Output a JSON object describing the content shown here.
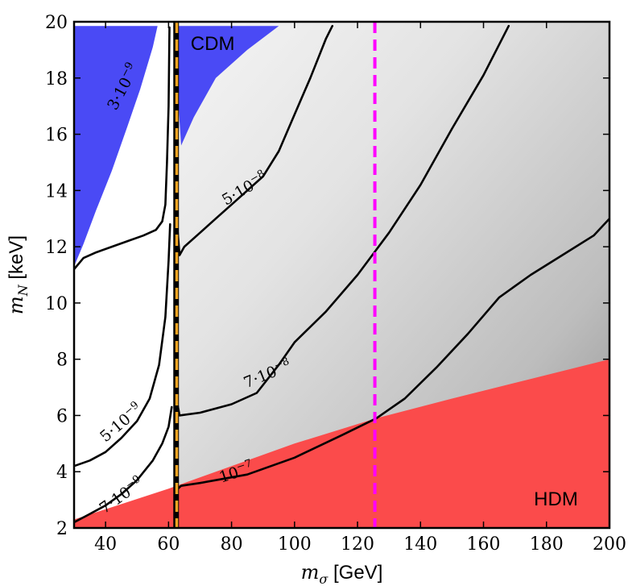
{
  "chart_data": {
    "type": "contour",
    "xlabel": "m_σ [GeV]",
    "ylabel": "m_N [keV]",
    "xlim": [
      30,
      200
    ],
    "ylim": [
      2,
      20
    ],
    "xticks": [
      40,
      60,
      80,
      100,
      120,
      140,
      160,
      180,
      200
    ],
    "yticks": [
      2,
      4,
      6,
      8,
      10,
      12,
      14,
      16,
      18,
      20
    ],
    "grid": false,
    "background": {
      "description": "grey gradient increasing with m_σ and decreasing m_N, white left of resonance",
      "colors": [
        "#ffffff",
        "#ebebeb",
        "#9a9a9a"
      ]
    },
    "regions": [
      {
        "name": "CDM",
        "label": "CDM",
        "color": "#4a4af5",
        "boundary": [
          [
            30,
            11.3
          ],
          [
            33,
            12.1
          ],
          [
            37,
            13.3
          ],
          [
            42,
            14.7
          ],
          [
            47,
            16.3
          ],
          [
            51,
            17.6
          ],
          [
            55,
            19.1
          ],
          [
            56.5,
            19.85
          ],
          [
            61.5,
            19.85
          ],
          [
            64,
            15.6
          ],
          [
            68,
            16.6
          ],
          [
            75,
            18.0
          ],
          [
            85,
            19.0
          ],
          [
            95,
            19.85
          ],
          [
            30,
            19.85
          ]
        ]
      },
      {
        "name": "HDM",
        "label": "HDM",
        "color": "#fb4b4b",
        "boundary": [
          [
            30,
            2.3
          ],
          [
            60,
            3.4
          ],
          [
            80,
            4.2
          ],
          [
            100,
            5.0
          ],
          [
            126,
            5.9
          ],
          [
            150,
            6.6
          ],
          [
            175,
            7.3
          ],
          [
            200,
            8.0
          ],
          [
            200,
            2.0
          ],
          [
            30,
            2.0
          ]
        ]
      }
    ],
    "contours": [
      {
        "label": "3·10^-9",
        "label_at": [
          47,
          17.6
        ],
        "points": [
          [
            30,
            11.2
          ],
          [
            33,
            11.6
          ],
          [
            37,
            11.8
          ],
          [
            42,
            12.0
          ],
          [
            47,
            12.2
          ],
          [
            52,
            12.4
          ],
          [
            56,
            12.6
          ],
          [
            58,
            12.9
          ],
          [
            59,
            13.5
          ],
          [
            59.5,
            15
          ],
          [
            60,
            17
          ],
          [
            60.3,
            19.8
          ]
        ]
      },
      {
        "label": "5·10^-9",
        "label_at": [
          46,
          5.6
        ],
        "points": [
          [
            30,
            4.2
          ],
          [
            35,
            4.4
          ],
          [
            40,
            4.7
          ],
          [
            45,
            5.2
          ],
          [
            50,
            5.8
          ],
          [
            54,
            6.6
          ],
          [
            57,
            7.8
          ],
          [
            59,
            9.5
          ],
          [
            60,
            11.5
          ],
          [
            60.5,
            12.8
          ]
        ]
      },
      {
        "label": "7·10^-9",
        "label_at": [
          46,
          3.0
        ],
        "points": [
          [
            30,
            2.2
          ],
          [
            35,
            2.5
          ],
          [
            40,
            2.8
          ],
          [
            45,
            3.2
          ],
          [
            50,
            3.7
          ],
          [
            55,
            4.4
          ],
          [
            58,
            5.0
          ],
          [
            60,
            5.6
          ],
          [
            61,
            6.3
          ]
        ]
      },
      {
        "label": "5·10^-8",
        "label_at": [
          85,
          13.9
        ],
        "points": [
          [
            62.5,
            13.1
          ],
          [
            63,
            12.4
          ],
          [
            63.5,
            11.7
          ],
          [
            65,
            12.0
          ],
          [
            70,
            12.5
          ],
          [
            75,
            13.0
          ],
          [
            80,
            13.5
          ],
          [
            90,
            14.5
          ],
          [
            95,
            15.4
          ],
          [
            100,
            16.7
          ],
          [
            105,
            18.0
          ],
          [
            110,
            19.4
          ],
          [
            112,
            19.85
          ]
        ]
      },
      {
        "label": "7·10^-8",
        "label_at": [
          92,
          7.3
        ],
        "points": [
          [
            62.5,
            6.7
          ],
          [
            63,
            6.3
          ],
          [
            63.5,
            6.0
          ],
          [
            70,
            6.1
          ],
          [
            80,
            6.4
          ],
          [
            88,
            6.8
          ],
          [
            95,
            7.8
          ],
          [
            100,
            8.6
          ],
          [
            110,
            9.7
          ],
          [
            120,
            11.0
          ],
          [
            130,
            12.5
          ],
          [
            140,
            14.2
          ],
          [
            150,
            16.2
          ],
          [
            160,
            18.1
          ],
          [
            168,
            19.85
          ]
        ]
      },
      {
        "label": "10^-7",
        "label_at": [
          82,
          3.8
        ],
        "points": [
          [
            62.5,
            3.2
          ],
          [
            63,
            3.4
          ],
          [
            64,
            3.5
          ],
          [
            70,
            3.6
          ],
          [
            75,
            3.7
          ],
          [
            85,
            3.9
          ],
          [
            100,
            4.5
          ],
          [
            115,
            5.3
          ],
          [
            126,
            5.9
          ],
          [
            135,
            6.6
          ],
          [
            145,
            7.7
          ],
          [
            155,
            8.9
          ],
          [
            165,
            10.2
          ],
          [
            175,
            11.0
          ],
          [
            185,
            11.7
          ],
          [
            195,
            12.4
          ],
          [
            200,
            13.0
          ]
        ]
      }
    ],
    "vertical_lines": [
      {
        "name": "resonance",
        "x": 62.4,
        "color": "#000000",
        "style": "solid"
      },
      {
        "name": "m_h/2",
        "x": 62.6,
        "color": "#f5a623",
        "style": "dashed"
      },
      {
        "name": "m_h",
        "x": 125.5,
        "color": "#ff00ff",
        "style": "dashed"
      }
    ],
    "annotations": [
      {
        "text": "CDM",
        "x": 74,
        "y": 19.0
      },
      {
        "text": "HDM",
        "x": 183,
        "y": 2.8
      }
    ]
  }
}
